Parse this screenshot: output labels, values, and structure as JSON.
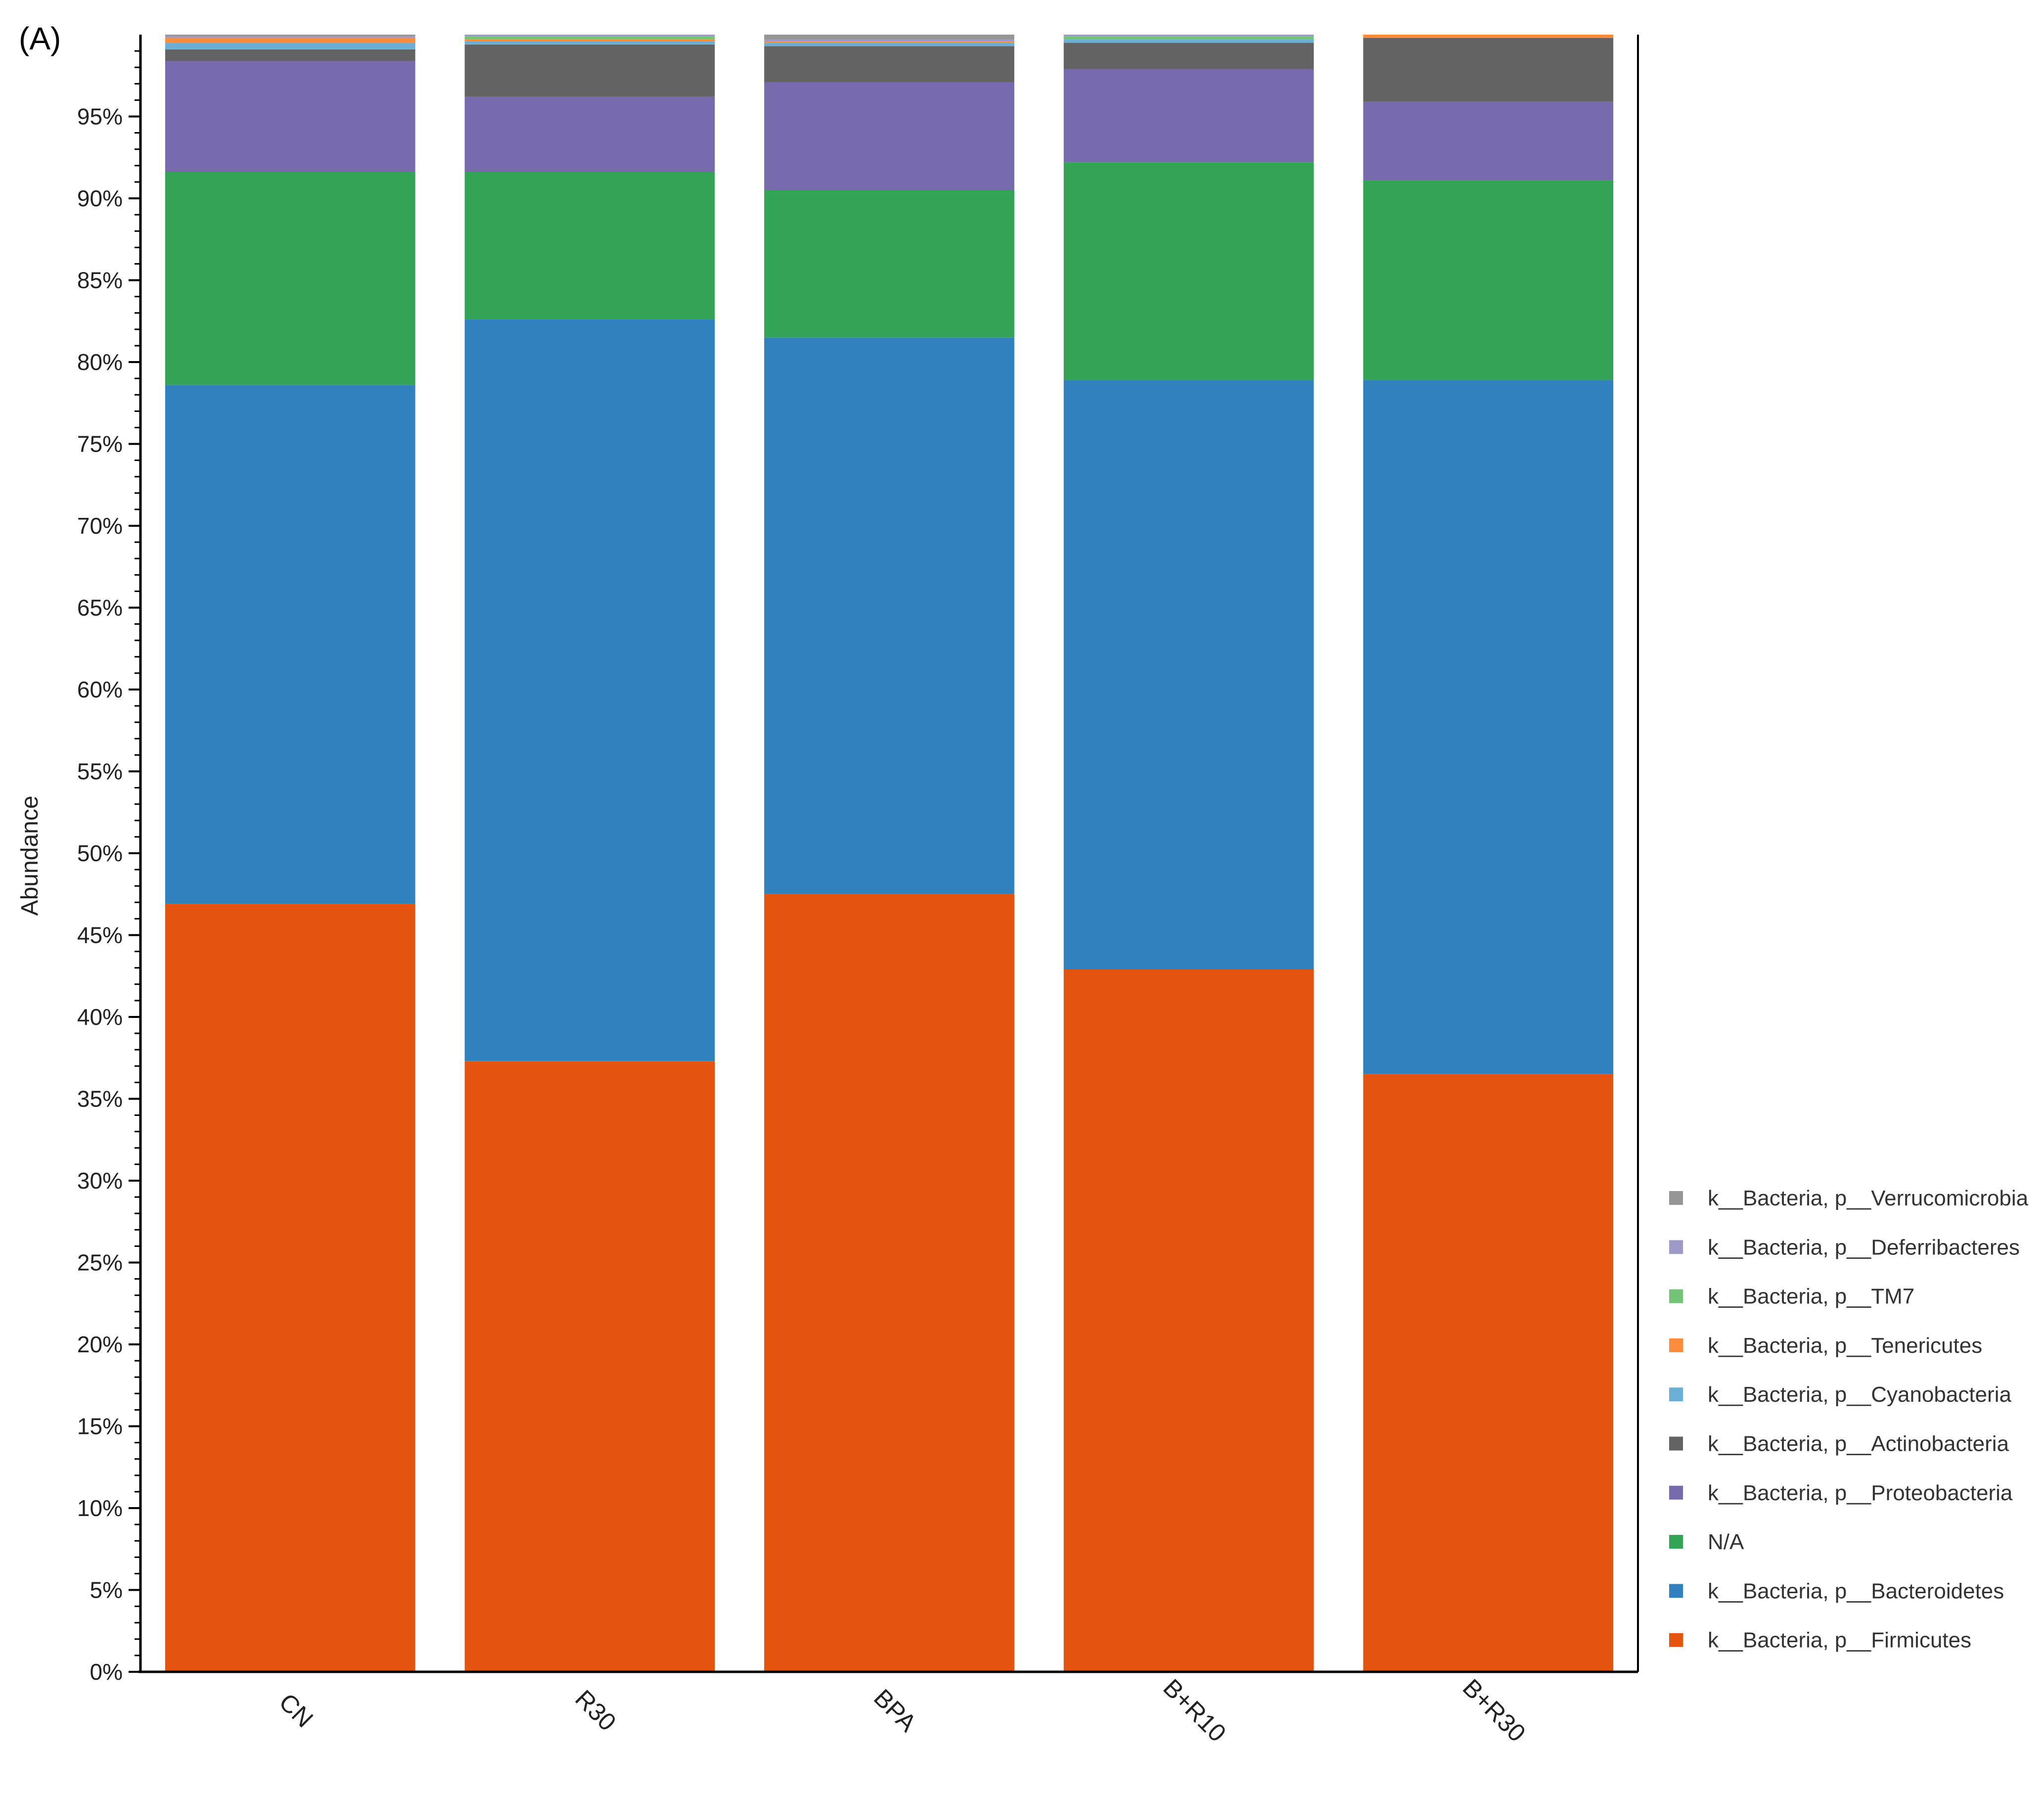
{
  "panel_label": "(A)",
  "chart_data": {
    "type": "bar",
    "stacked": true,
    "ylabel": "Abundance",
    "xlabel": "",
    "ylim": [
      0,
      100
    ],
    "y_ticks": [
      "0%",
      "5%",
      "10%",
      "15%",
      "20%",
      "25%",
      "30%",
      "35%",
      "40%",
      "45%",
      "50%",
      "55%",
      "60%",
      "65%",
      "70%",
      "75%",
      "80%",
      "85%",
      "90%",
      "95%"
    ],
    "y_tick_values": [
      0,
      5,
      10,
      15,
      20,
      25,
      30,
      35,
      40,
      45,
      50,
      55,
      60,
      65,
      70,
      75,
      80,
      85,
      90,
      95
    ],
    "categories": [
      "CN",
      "R30",
      "BPA",
      "B+R10",
      "B+R30"
    ],
    "legend_position": "bottom-right",
    "series": [
      {
        "name": "k__Bacteria, p__Firmicutes",
        "color": "#E4540F",
        "values": [
          46.9,
          37.3,
          47.5,
          42.9,
          36.5
        ]
      },
      {
        "name": "k__Bacteria, p__Bacteroidetes",
        "color": "#3181BE",
        "values": [
          31.7,
          45.3,
          34.0,
          36.0,
          42.4
        ]
      },
      {
        "name": "N/A",
        "color": "#33A356",
        "values": [
          13.0,
          9.0,
          9.0,
          13.3,
          12.2
        ]
      },
      {
        "name": "k__Bacteria, p__Proteobacteria",
        "color": "#776BAE",
        "values": [
          6.8,
          4.6,
          6.6,
          5.7,
          4.8
        ]
      },
      {
        "name": "k__Bacteria, p__Actinobacteria",
        "color": "#636363",
        "values": [
          0.7,
          3.2,
          2.2,
          1.6,
          3.9
        ]
      },
      {
        "name": "k__Bacteria, p__Cyanobacteria",
        "color": "#6BAED6",
        "values": [
          0.4,
          0.2,
          0.2,
          0.2,
          0.0
        ]
      },
      {
        "name": "k__Bacteria, p__Tenericutes",
        "color": "#FD8D3C",
        "values": [
          0.3,
          0.1,
          0.1,
          0.0,
          0.2
        ]
      },
      {
        "name": "k__Bacteria, p__TM7",
        "color": "#74C476",
        "values": [
          0.0,
          0.2,
          0.0,
          0.2,
          0.0
        ]
      },
      {
        "name": "k__Bacteria, p__Deferribacteres",
        "color": "#9E9AC8",
        "values": [
          0.1,
          0.1,
          0.1,
          0.1,
          0.0
        ]
      },
      {
        "name": "k__Bacteria, p__Verrucomicrobia",
        "color": "#969696",
        "values": [
          0.1,
          0.0,
          0.3,
          0.0,
          0.0
        ]
      }
    ]
  }
}
